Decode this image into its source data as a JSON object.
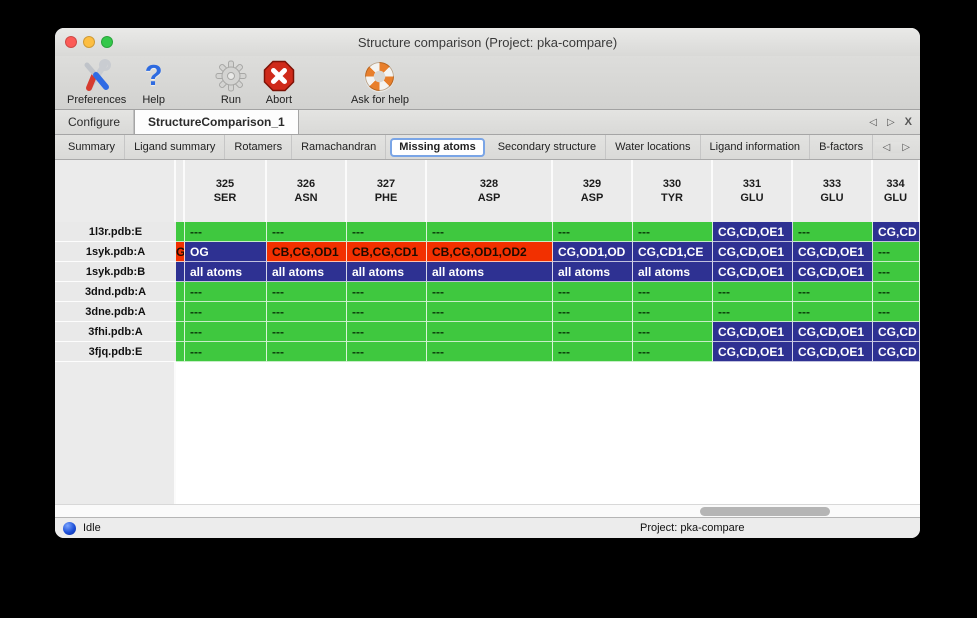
{
  "window": {
    "title": "Structure comparison (Project: pka-compare)"
  },
  "traffic_lights": {
    "close": "#fc5b57",
    "minimize": "#fdbe41",
    "zoom": "#34c84a"
  },
  "toolbar": {
    "items": [
      {
        "label": "Preferences",
        "icon": "preferences-tools-icon"
      },
      {
        "label": "Help",
        "icon": "help-question-icon"
      },
      {
        "label": "Run",
        "icon": "run-gear-icon"
      },
      {
        "label": "Abort",
        "icon": "abort-stop-icon"
      },
      {
        "label": "Ask for help",
        "icon": "lifebuoy-icon"
      }
    ]
  },
  "doc_tabs": {
    "tabs": [
      {
        "label": "Configure",
        "active": false
      },
      {
        "label": "StructureComparison_1",
        "active": true
      }
    ],
    "nav": {
      "left": "◁",
      "right": "▷",
      "close": "X"
    }
  },
  "sub_tabs": {
    "tabs": [
      "Summary",
      "Ligand summary",
      "Rotamers",
      "Ramachandran",
      "Missing atoms",
      "Secondary structure",
      "Water locations",
      "Ligand information",
      "B-factors"
    ],
    "active": "Missing atoms",
    "nav": {
      "left": "◁",
      "right": "▷"
    }
  },
  "table": {
    "columns": [
      {
        "num": "325",
        "res": "SER"
      },
      {
        "num": "326",
        "res": "ASN"
      },
      {
        "num": "327",
        "res": "PHE"
      },
      {
        "num": "328",
        "res": "ASP"
      },
      {
        "num": "329",
        "res": "ASP"
      },
      {
        "num": "330",
        "res": "TYR"
      },
      {
        "num": "331",
        "res": "GLU"
      },
      {
        "num": "333",
        "res": "GLU"
      },
      {
        "num": "334",
        "res": "GLU"
      }
    ],
    "rows": [
      {
        "label": "1l3r.pdb:E",
        "strip": {
          "text": "",
          "color": "green"
        },
        "cells": [
          {
            "text": "---",
            "color": "green"
          },
          {
            "text": "---",
            "color": "green"
          },
          {
            "text": "---",
            "color": "green"
          },
          {
            "text": "---",
            "color": "green"
          },
          {
            "text": "---",
            "color": "green"
          },
          {
            "text": "---",
            "color": "green"
          },
          {
            "text": "CG,CD,OE1",
            "color": "blue"
          },
          {
            "text": "---",
            "color": "green"
          },
          {
            "text": "CG,CD",
            "color": "blue"
          }
        ]
      },
      {
        "label": "1syk.pdb:A",
        "strip": {
          "text": "G",
          "color": "red"
        },
        "cells": [
          {
            "text": "OG",
            "color": "blue"
          },
          {
            "text": "CB,CG,OD1",
            "color": "red"
          },
          {
            "text": "CB,CG,CD1",
            "color": "red"
          },
          {
            "text": "CB,CG,OD1,OD2",
            "color": "red"
          },
          {
            "text": "CG,OD1,OD",
            "color": "blue"
          },
          {
            "text": "CG,CD1,CE",
            "color": "blue"
          },
          {
            "text": "CG,CD,OE1",
            "color": "blue"
          },
          {
            "text": "CG,CD,OE1",
            "color": "blue"
          },
          {
            "text": "---",
            "color": "green"
          }
        ]
      },
      {
        "label": "1syk.pdb:B",
        "strip": {
          "text": "",
          "color": "blue"
        },
        "cells": [
          {
            "text": "all atoms",
            "color": "blue"
          },
          {
            "text": "all atoms",
            "color": "blue"
          },
          {
            "text": "all atoms",
            "color": "blue"
          },
          {
            "text": "all atoms",
            "color": "blue"
          },
          {
            "text": "all atoms",
            "color": "blue"
          },
          {
            "text": "all atoms",
            "color": "blue"
          },
          {
            "text": "CG,CD,OE1",
            "color": "blue"
          },
          {
            "text": "CG,CD,OE1",
            "color": "blue"
          },
          {
            "text": "---",
            "color": "green"
          }
        ]
      },
      {
        "label": "3dnd.pdb:A",
        "strip": {
          "text": "",
          "color": "green"
        },
        "cells": [
          {
            "text": "---",
            "color": "green"
          },
          {
            "text": "---",
            "color": "green"
          },
          {
            "text": "---",
            "color": "green"
          },
          {
            "text": "---",
            "color": "green"
          },
          {
            "text": "---",
            "color": "green"
          },
          {
            "text": "---",
            "color": "green"
          },
          {
            "text": "---",
            "color": "green"
          },
          {
            "text": "---",
            "color": "green"
          },
          {
            "text": "---",
            "color": "green"
          }
        ]
      },
      {
        "label": "3dne.pdb:A",
        "strip": {
          "text": "",
          "color": "green"
        },
        "cells": [
          {
            "text": "---",
            "color": "green"
          },
          {
            "text": "---",
            "color": "green"
          },
          {
            "text": "---",
            "color": "green"
          },
          {
            "text": "---",
            "color": "green"
          },
          {
            "text": "---",
            "color": "green"
          },
          {
            "text": "---",
            "color": "green"
          },
          {
            "text": "---",
            "color": "green"
          },
          {
            "text": "---",
            "color": "green"
          },
          {
            "text": "---",
            "color": "green"
          }
        ]
      },
      {
        "label": "3fhi.pdb:A",
        "strip": {
          "text": "",
          "color": "green"
        },
        "cells": [
          {
            "text": "---",
            "color": "green"
          },
          {
            "text": "---",
            "color": "green"
          },
          {
            "text": "---",
            "color": "green"
          },
          {
            "text": "---",
            "color": "green"
          },
          {
            "text": "---",
            "color": "green"
          },
          {
            "text": "---",
            "color": "green"
          },
          {
            "text": "CG,CD,OE1",
            "color": "blue"
          },
          {
            "text": "CG,CD,OE1",
            "color": "blue"
          },
          {
            "text": "CG,CD",
            "color": "blue"
          }
        ]
      },
      {
        "label": "3fjq.pdb:E",
        "strip": {
          "text": "",
          "color": "green"
        },
        "cells": [
          {
            "text": "---",
            "color": "green"
          },
          {
            "text": "---",
            "color": "green"
          },
          {
            "text": "---",
            "color": "green"
          },
          {
            "text": "---",
            "color": "green"
          },
          {
            "text": "---",
            "color": "green"
          },
          {
            "text": "---",
            "color": "green"
          },
          {
            "text": "CG,CD,OE1",
            "color": "blue"
          },
          {
            "text": "CG,CD,OE1",
            "color": "blue"
          },
          {
            "text": "CG,CD",
            "color": "blue"
          }
        ]
      }
    ]
  },
  "status_bar": {
    "left_text": "Idle",
    "right_text": "Project: pka-compare"
  },
  "colors": {
    "green": "#3fc83f",
    "blue": "#2e3192",
    "red": "#f23000",
    "tab_focus_ring": "#7aa5e6",
    "status_ball_blue": "#1d4fd7"
  }
}
